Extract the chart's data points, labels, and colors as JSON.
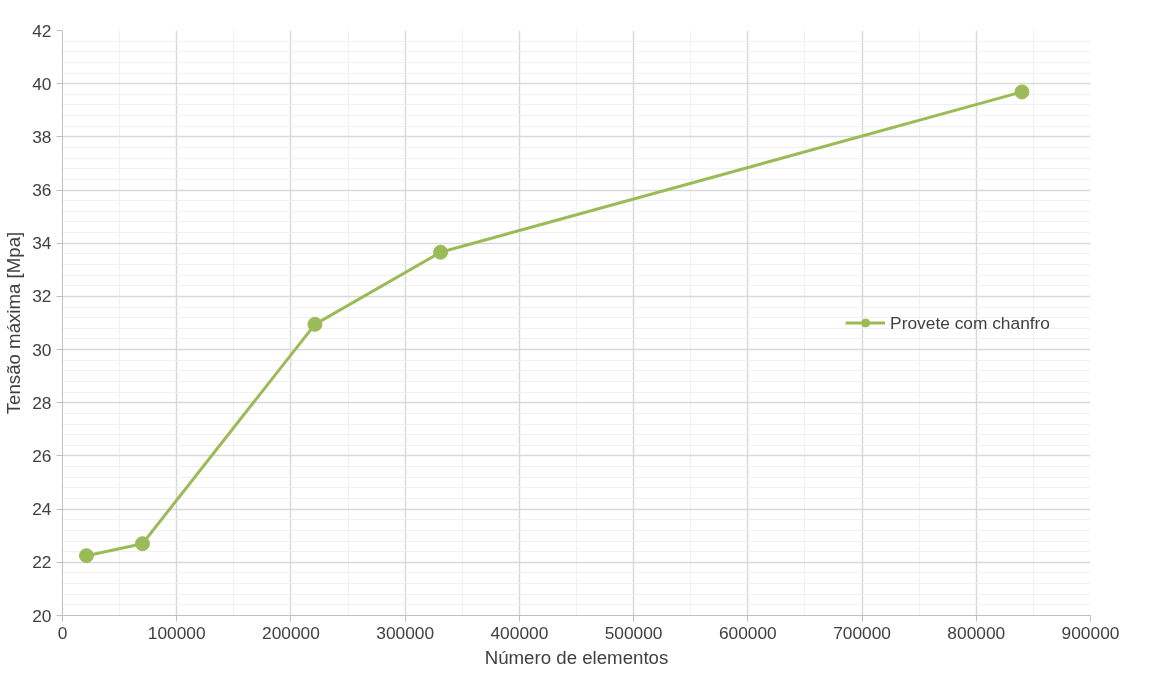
{
  "chart_data": {
    "type": "line",
    "xlabel": "Número de elementos",
    "ylabel": "Tensão máxima [Mpa]",
    "x": [
      21000,
      70000,
      221000,
      331000,
      840000
    ],
    "series": [
      {
        "name": "Provete com chanfro",
        "color": "#9bbb59",
        "values": [
          22.25,
          22.7,
          30.95,
          33.66,
          39.69
        ]
      }
    ],
    "xlim": [
      0,
      900000
    ],
    "xticks": [
      0,
      100000,
      200000,
      300000,
      400000,
      500000,
      600000,
      700000,
      800000,
      900000
    ],
    "ylim": [
      20,
      42
    ],
    "yticks": [
      20,
      22,
      24,
      26,
      28,
      30,
      32,
      34,
      36,
      38,
      40,
      42
    ],
    "grid": true,
    "legend": "right",
    "marker": "circle",
    "line_style": "solid"
  }
}
